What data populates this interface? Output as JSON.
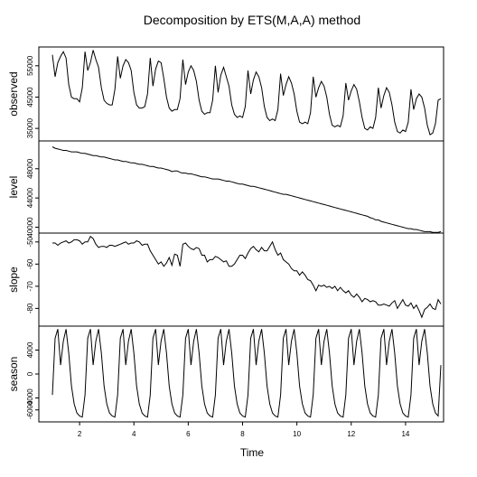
{
  "title": "Decomposition by ETS(M,A,A) method",
  "xlabel": "Time",
  "chart_data": {
    "type": "line",
    "title": "Decomposition by ETS(M,A,A) method",
    "xlabel": "Time",
    "x_ticks": [
      2,
      4,
      6,
      8,
      10,
      12,
      14
    ],
    "x_range": [
      0.5,
      15.4
    ],
    "x_start": 1.0,
    "x_step": 0.1,
    "panels": [
      {
        "name": "observed",
        "ylabel": "observed",
        "ylim": [
          31000,
          61000
        ],
        "yticks": [
          35000,
          45000,
          55000
        ],
        "values": [
          58500,
          51500,
          56000,
          58000,
          59500,
          57500,
          49000,
          45000,
          44500,
          44500,
          43500,
          48000,
          59500,
          53500,
          56000,
          60000,
          57000,
          54500,
          48000,
          44000,
          43000,
          42500,
          42500,
          47500,
          58000,
          51000,
          55000,
          57000,
          56000,
          53500,
          46500,
          42500,
          41500,
          41500,
          42000,
          46000,
          57500,
          48500,
          54000,
          56500,
          56000,
          51000,
          45000,
          41500,
          40500,
          41000,
          41000,
          44500,
          57000,
          49000,
          53000,
          55000,
          53500,
          50000,
          44000,
          40500,
          39500,
          40000,
          40000,
          44000,
          55000,
          46500,
          52000,
          54500,
          51500,
          48500,
          42500,
          39500,
          38500,
          39000,
          38500,
          42000,
          53500,
          46000,
          50500,
          53000,
          51500,
          48000,
          42000,
          38500,
          37500,
          38000,
          37500,
          41000,
          52500,
          45500,
          49000,
          51500,
          49500,
          46000,
          40500,
          37000,
          36500,
          37000,
          36500,
          40000,
          51500,
          45000,
          48000,
          50000,
          48500,
          45000,
          39500,
          36000,
          35500,
          36000,
          35500,
          39000,
          49500,
          44000,
          47000,
          49000,
          47500,
          43500,
          38500,
          35000,
          34500,
          35500,
          35000,
          38500,
          48000,
          41500,
          45500,
          48000,
          46500,
          42500,
          37000,
          34000,
          33500,
          34500,
          34000,
          37000,
          47500,
          41000,
          44500,
          46000,
          45000,
          41500,
          36000,
          33000,
          33500,
          36500,
          44000,
          44500
        ]
      },
      {
        "name": "level",
        "ylabel": "level",
        "ylim": [
          39200,
          51800
        ],
        "yticks": [
          40000,
          44000,
          48000
        ],
        "values": [
          51000,
          50800,
          50700,
          50600,
          50500,
          50500,
          50400,
          50300,
          50300,
          50300,
          50200,
          50100,
          50100,
          50000,
          49900,
          49800,
          49800,
          49700,
          49600,
          49600,
          49500,
          49400,
          49300,
          49200,
          49200,
          49100,
          49000,
          49000,
          48900,
          48800,
          48800,
          48700,
          48600,
          48600,
          48500,
          48400,
          48300,
          48300,
          48200,
          48100,
          48100,
          48000,
          47900,
          47800,
          47600,
          47700,
          47700,
          47500,
          47400,
          47400,
          47300,
          47300,
          47200,
          47100,
          47000,
          46900,
          46900,
          46800,
          46700,
          46600,
          46600,
          46600,
          46500,
          46400,
          46300,
          46300,
          46200,
          46100,
          46000,
          45900,
          45900,
          45800,
          45700,
          45600,
          45600,
          45500,
          45400,
          45300,
          45200,
          45100,
          45000,
          44900,
          44800,
          44700,
          44600,
          44500,
          44500,
          44400,
          44300,
          44200,
          44100,
          44000,
          43900,
          43800,
          43700,
          43600,
          43500,
          43400,
          43300,
          43200,
          43100,
          43000,
          42900,
          42800,
          42700,
          42600,
          42500,
          42400,
          42300,
          42200,
          42100,
          42000,
          41900,
          41800,
          41700,
          41600,
          41500,
          41300,
          41200,
          41000,
          41000,
          40800,
          40700,
          40600,
          40500,
          40400,
          40300,
          40200,
          40100,
          40000,
          39900,
          39800,
          39800,
          39700,
          39700,
          39600,
          39500,
          39400,
          39400,
          39400,
          39300,
          39300,
          39300,
          39400
        ]
      },
      {
        "name": "slope",
        "ylabel": "slope",
        "ylim": [
          -88,
          -46
        ],
        "yticks": [
          -80,
          -70,
          -60,
          -50
        ],
        "values": [
          -50.5,
          -50.5,
          -51.5,
          -50.5,
          -50,
          -49.5,
          -50.5,
          -50,
          -49,
          -49,
          -49.5,
          -51,
          -50,
          -50,
          -47.5,
          -48.5,
          -51,
          -52.5,
          -52,
          -52,
          -52.5,
          -51.5,
          -51.5,
          -52,
          -51.5,
          -51,
          -50.5,
          -50,
          -51,
          -50.5,
          -50.5,
          -49.5,
          -50,
          -51.5,
          -51,
          -51,
          -54,
          -56,
          -58,
          -60,
          -59,
          -61,
          -59.5,
          -57,
          -60.5,
          -55.5,
          -56,
          -61,
          -51,
          -50.5,
          -52,
          -53,
          -53.5,
          -52.5,
          -53,
          -56,
          -56,
          -59,
          -58,
          -58,
          -56.5,
          -57,
          -58,
          -59,
          -58.5,
          -61,
          -61,
          -60,
          -58,
          -56,
          -56,
          -57.5,
          -55,
          -53,
          -52,
          -53.5,
          -54.5,
          -52.5,
          -54,
          -54,
          -52,
          -50,
          -53.5,
          -56,
          -55,
          -58,
          -59,
          -60,
          -62,
          -63,
          -63,
          -65,
          -63.5,
          -65,
          -67,
          -67.5,
          -69.5,
          -72,
          -69.5,
          -70,
          -69.5,
          -70.5,
          -70,
          -71,
          -70,
          -72,
          -70.5,
          -72,
          -73,
          -72,
          -74,
          -75,
          -73.5,
          -75,
          -77,
          -75.5,
          -76,
          -77,
          -76.5,
          -77,
          -78.5,
          -78.5,
          -78,
          -78.5,
          -79,
          -77.5,
          -76.5,
          -80,
          -78,
          -76,
          -78.5,
          -79,
          -77.5,
          -80,
          -78.5,
          -81,
          -84,
          -80.5,
          -79.5,
          -78,
          -80,
          -80.5,
          -76,
          -78
        ]
      },
      {
        "name": "season",
        "ylabel": "season",
        "ylim": [
          -8000,
          8000
        ],
        "yticks": [
          -6000,
          -4000,
          0,
          4000
        ],
        "values": [
          -3500,
          6000,
          7500,
          1500,
          5500,
          7500,
          3500,
          -2000,
          -5000,
          -6500,
          -7000,
          -7200,
          -3500,
          6000,
          7500,
          1500,
          5500,
          7500,
          3500,
          -2000,
          -5000,
          -6500,
          -7000,
          -7200,
          -3500,
          6000,
          7500,
          1500,
          5500,
          7500,
          3500,
          -2000,
          -5000,
          -6500,
          -7000,
          -7200,
          -3500,
          6000,
          7500,
          1500,
          5500,
          7500,
          3500,
          -2000,
          -5000,
          -6500,
          -7000,
          -7200,
          -3500,
          6000,
          7500,
          1500,
          5500,
          7500,
          3500,
          -2000,
          -5000,
          -6500,
          -7000,
          -7200,
          -3500,
          6000,
          7500,
          1500,
          5500,
          7500,
          3500,
          -2000,
          -5000,
          -6500,
          -7000,
          -7200,
          -3500,
          6000,
          7500,
          1500,
          5500,
          7500,
          3500,
          -2000,
          -5000,
          -6500,
          -7000,
          -7200,
          -3500,
          6000,
          7500,
          1500,
          5500,
          7500,
          3500,
          -2000,
          -5000,
          -6500,
          -7000,
          -7200,
          -3500,
          6000,
          7500,
          1500,
          5500,
          7500,
          3500,
          -2000,
          -5000,
          -6500,
          -7000,
          -7200,
          -3500,
          6000,
          7500,
          1500,
          5500,
          7500,
          3500,
          -2000,
          -5000,
          -6500,
          -7000,
          -7200,
          -3500,
          6000,
          7500,
          1500,
          5500,
          7500,
          3500,
          -2000,
          -5000,
          -6500,
          -7000,
          -7200,
          -3500,
          6000,
          7500,
          1500,
          5500,
          7500,
          3500,
          -2000,
          -5000,
          -6500,
          -7000,
          1500
        ]
      }
    ]
  }
}
